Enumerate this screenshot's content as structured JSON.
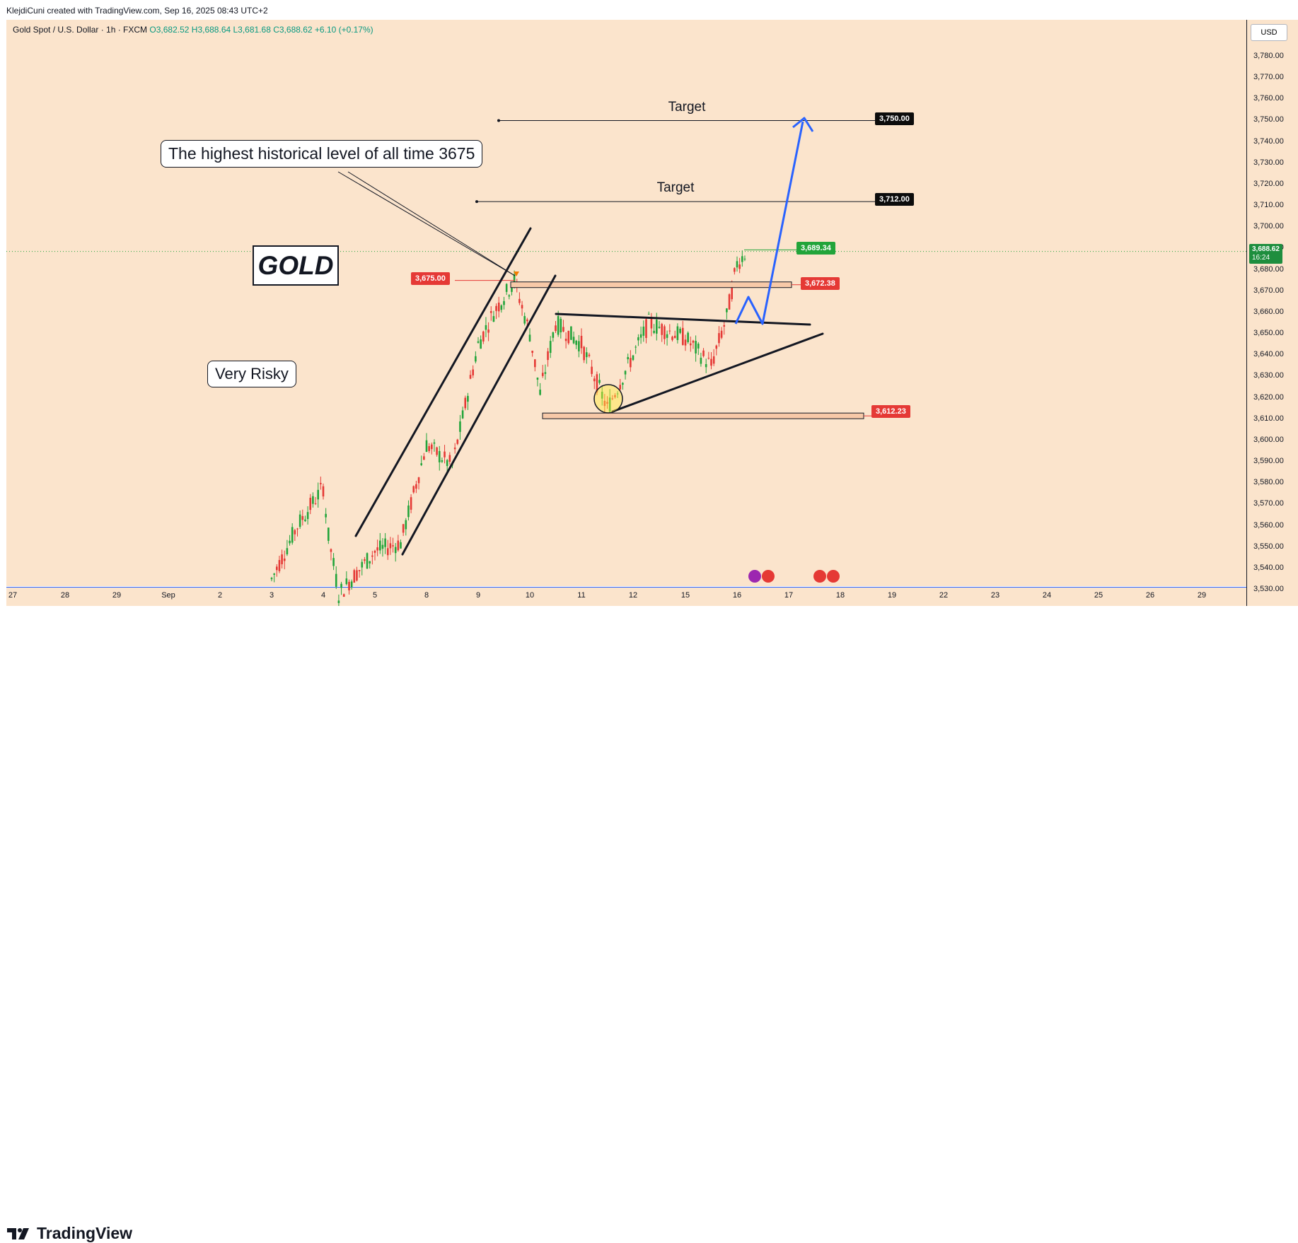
{
  "header": {
    "attribution": "KlejdiCuni created with TradingView.com, Sep 16, 2025 08:43 UTC+2"
  },
  "legend": {
    "symbol": "Gold Spot / U.S. Dollar · 1h · FXCM",
    "ohlc": "O3,682.52 H3,688.64 L3,681.68 C3,688.62 +6.10 (+0.17%)"
  },
  "currency": "USD",
  "price_axis": [
    "3,780.00",
    "3,770.00",
    "3,760.00",
    "3,750.00",
    "3,740.00",
    "3,730.00",
    "3,720.00",
    "3,710.00",
    "3,700.00",
    "3,690.00",
    "3,680.00",
    "3,670.00",
    "3,660.00",
    "3,650.00",
    "3,640.00",
    "3,630.00",
    "3,620.00",
    "3,610.00",
    "3,600.00",
    "3,590.00",
    "3,580.00",
    "3,570.00",
    "3,560.00",
    "3,550.00",
    "3,540.00",
    "3,530.00"
  ],
  "date_axis": [
    "27",
    "28",
    "29",
    "Sep",
    "2",
    "3",
    "4",
    "5",
    "8",
    "9",
    "10",
    "11",
    "12",
    "15",
    "16",
    "17",
    "18",
    "19",
    "22",
    "23",
    "24",
    "25",
    "26",
    "29"
  ],
  "current_price": {
    "value": "3,688.62",
    "countdown": "16:24"
  },
  "levels": {
    "target1": {
      "label": "Target",
      "price": "3,750.00"
    },
    "target2": {
      "label": "Target",
      "price": "3,712.00"
    },
    "high": "3,689.34",
    "resistance_right": "3,672.38",
    "resistance_left": "3,675.00",
    "support": "3,612.23"
  },
  "annotations": {
    "ath": "The highest historical level of all time 3675",
    "gold": "GOLD",
    "risk": "Very Risky"
  },
  "footer": {
    "logo": "TradingView"
  },
  "colors": {
    "background": "#fbe4cc",
    "up": "#22a43a",
    "down": "#e53935",
    "arrow": "#2962ff"
  },
  "chart_data": {
    "type": "candlestick",
    "title": "Gold Spot / U.S. Dollar · 1h · FXCM",
    "ylim": [
      3525,
      3790
    ],
    "x_labels": [
      "27",
      "28",
      "29",
      "Sep",
      "2",
      "3",
      "4",
      "5",
      "8",
      "9",
      "10",
      "11",
      "12",
      "15",
      "16",
      "17",
      "18",
      "19",
      "22",
      "23",
      "24",
      "25",
      "26",
      "29"
    ],
    "close_path": [
      [
        "3",
        3535
      ],
      [
        "3.5",
        3560
      ],
      [
        "4",
        3578
      ],
      [
        "4.1",
        3555
      ],
      [
        "4.3",
        3528
      ],
      [
        "5",
        3548
      ],
      [
        "5.5",
        3552
      ],
      [
        "8",
        3598
      ],
      [
        "8.5",
        3588
      ],
      [
        "9",
        3645
      ],
      [
        "9.3",
        3660
      ],
      [
        "9.7",
        3675
      ],
      [
        "10",
        3650
      ],
      [
        "10.2",
        3622
      ],
      [
        "10.5",
        3655
      ],
      [
        "11",
        3645
      ],
      [
        "11.5",
        3615
      ],
      [
        "12",
        3640
      ],
      [
        "12.3",
        3655
      ],
      [
        "15",
        3648
      ],
      [
        "15.5",
        3635
      ],
      [
        "15.8",
        3658
      ],
      [
        "16",
        3683
      ],
      [
        "16.2",
        3689
      ]
    ],
    "horizontal_levels": [
      3750.0,
      3712.0,
      3689.34,
      3675.0,
      3672.38,
      3612.23
    ],
    "projection": [
      [
        3689,
        3655
      ],
      [
        3655,
        3665
      ],
      [
        3665,
        3750
      ]
    ]
  }
}
